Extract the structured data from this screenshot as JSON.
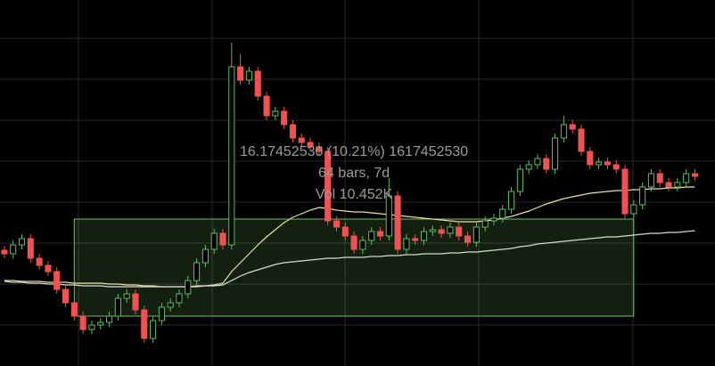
{
  "chart_data": {
    "type": "candlestick",
    "categories": [
      null,
      null,
      null,
      null,
      null,
      null,
      null,
      null,
      null,
      null,
      null,
      null,
      null,
      null,
      null,
      null,
      null,
      null,
      null,
      null,
      null,
      null,
      null,
      null,
      null,
      null,
      null,
      null,
      null,
      null,
      null,
      null,
      null,
      null,
      null,
      null,
      null,
      null,
      null,
      null,
      null,
      null,
      null,
      null,
      null,
      null,
      null,
      null,
      null,
      null,
      null,
      null,
      null,
      null,
      null,
      null,
      null,
      null,
      null,
      null,
      null,
      null,
      null,
      null,
      null,
      null,
      null,
      null,
      null,
      null,
      null,
      null,
      null,
      null,
      null,
      null,
      null,
      null,
      null,
      null
    ],
    "open": [
      130,
      126,
      136,
      143,
      121,
      113,
      106,
      86,
      71,
      56,
      41,
      46,
      49,
      56,
      76,
      81,
      63,
      31,
      51,
      66,
      71,
      81,
      96,
      116,
      131,
      149,
      136,
      336,
      321,
      331,
      303,
      281,
      286,
      271,
      256,
      251,
      246,
      241,
      163,
      156,
      146,
      131,
      141,
      151,
      146,
      191,
      131,
      143,
      141,
      151,
      153,
      149,
      156,
      146,
      139,
      156,
      163,
      166,
      176,
      196,
      221,
      226,
      233,
      221,
      256,
      271,
      266,
      241,
      226,
      229,
      226,
      221,
      171,
      181,
      201,
      216,
      206,
      201,
      206,
      216
    ],
    "high": [
      135,
      141,
      148,
      148,
      126,
      118,
      111,
      91,
      76,
      61,
      51,
      54,
      61,
      81,
      86,
      86,
      68,
      56,
      71,
      76,
      86,
      101,
      121,
      136,
      154,
      154,
      363,
      350,
      336,
      336,
      308,
      291,
      291,
      276,
      261,
      256,
      251,
      246,
      168,
      161,
      151,
      146,
      156,
      156,
      211,
      196,
      148,
      148,
      156,
      158,
      158,
      161,
      161,
      151,
      161,
      168,
      171,
      181,
      201,
      226,
      231,
      238,
      238,
      261,
      281,
      276,
      271,
      246,
      234,
      234,
      231,
      226,
      186,
      206,
      221,
      221,
      211,
      211,
      221,
      221
    ],
    "low": [
      121,
      121,
      131,
      116,
      108,
      101,
      81,
      66,
      51,
      36,
      36,
      41,
      44,
      51,
      71,
      58,
      26,
      26,
      46,
      61,
      66,
      76,
      91,
      111,
      126,
      131,
      131,
      316,
      316,
      298,
      276,
      276,
      266,
      251,
      246,
      241,
      236,
      158,
      151,
      141,
      126,
      126,
      136,
      141,
      141,
      126,
      126,
      136,
      136,
      146,
      144,
      144,
      141,
      134,
      134,
      151,
      158,
      161,
      171,
      191,
      216,
      221,
      216,
      216,
      251,
      261,
      236,
      221,
      221,
      221,
      216,
      166,
      166,
      176,
      196,
      201,
      196,
      196,
      201,
      208
    ],
    "close": [
      126,
      136,
      143,
      121,
      113,
      106,
      86,
      71,
      56,
      41,
      46,
      49,
      56,
      76,
      81,
      63,
      31,
      51,
      66,
      71,
      81,
      96,
      116,
      131,
      149,
      136,
      336,
      321,
      331,
      303,
      281,
      286,
      271,
      256,
      251,
      246,
      241,
      163,
      156,
      146,
      131,
      141,
      151,
      146,
      191,
      131,
      143,
      141,
      151,
      153,
      149,
      156,
      146,
      139,
      156,
      163,
      166,
      176,
      196,
      221,
      226,
      233,
      221,
      256,
      271,
      266,
      241,
      226,
      229,
      226,
      221,
      171,
      181,
      201,
      216,
      206,
      201,
      206,
      216,
      213
    ],
    "up_color": "#5fbf5f",
    "down_color": "#ef5350",
    "series": [
      {
        "color": "#e8e0a0",
        "values": [
          96,
          96,
          95,
          95,
          95,
          94,
          94,
          94,
          93,
          93,
          93,
          93,
          92,
          92,
          91,
          91,
          90,
          90,
          89,
          89,
          89,
          89,
          90,
          90,
          91,
          93,
          106,
          116,
          126,
          136,
          145,
          153,
          161,
          167,
          171,
          175,
          178,
          177,
          175,
          174,
          173,
          173,
          172,
          171,
          170,
          169,
          168,
          167,
          166,
          165,
          164,
          163,
          162,
          162,
          162,
          163,
          164,
          166,
          168,
          171,
          174,
          178,
          182,
          185,
          188,
          190,
          192,
          194,
          195,
          196,
          197,
          197,
          198,
          198,
          199,
          199,
          200,
          200,
          201,
          201
        ]
      },
      {
        "color": "#d8d8d8",
        "values": [
          95,
          94,
          94,
          93,
          93,
          92,
          92,
          91,
          91,
          90,
          90,
          90,
          89,
          89,
          89,
          89,
          89,
          89,
          89,
          89,
          89,
          89,
          89,
          90,
          90,
          91,
          96,
          101,
          105,
          108,
          111,
          114,
          116,
          117,
          118,
          119,
          120,
          121,
          121,
          122,
          122,
          122,
          123,
          123,
          124,
          124,
          125,
          125,
          126,
          126,
          126,
          127,
          127,
          128,
          128,
          129,
          130,
          131,
          132,
          134,
          135,
          137,
          138,
          139,
          140,
          141,
          142,
          143,
          144,
          145,
          145,
          146,
          147,
          148,
          149,
          149,
          150,
          150,
          151,
          152
        ]
      }
    ],
    "measure": {
      "start": 8,
      "end": 72,
      "low": 56,
      "high": 165,
      "color": "#6fbf5f",
      "labels": [
        "16.17452530 (10.21%) 1617452530",
        "64 bars, 7d",
        "Vol 10.452K"
      ]
    },
    "ylim": [
      0,
      411
    ],
    "yticks": [
      46,
      92,
      138,
      184,
      230,
      276,
      322,
      368
    ],
    "grid": true
  }
}
